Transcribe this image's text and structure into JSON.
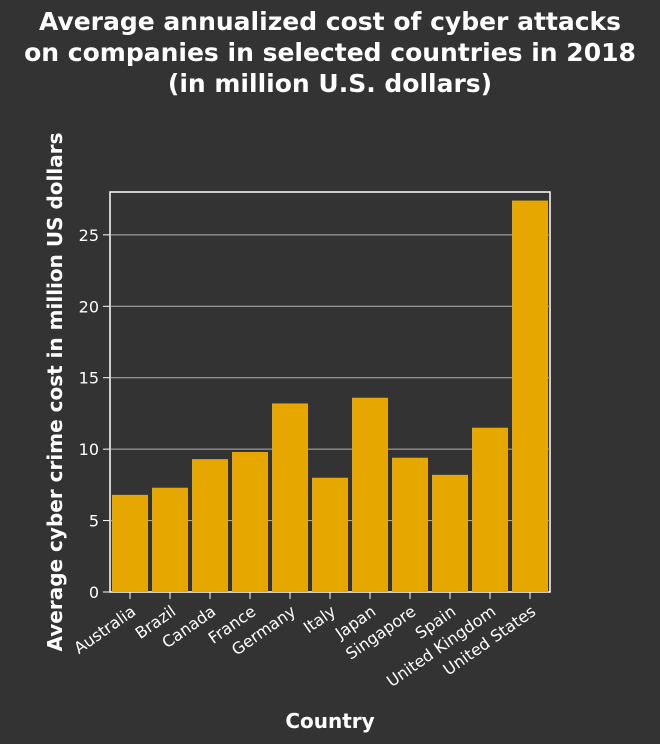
{
  "title_lines": [
    "Average annualized cost of cyber attacks",
    "on companies in selected countries in 2018",
    "(in million U.S. dollars)"
  ],
  "colors": {
    "background": "#333333",
    "bar": "#e6a800",
    "grid": "#b3b3b3",
    "text": "#ffffff"
  },
  "chart_data": {
    "type": "bar",
    "title": "Average annualized cost of cyber attacks on companies in selected countries in 2018 (in million U.S. dollars)",
    "xlabel": "Country",
    "ylabel": "Average cyber crime cost in million US dollars",
    "categories": [
      "Australia",
      "Brazil",
      "Canada",
      "France",
      "Germany",
      "Italy",
      "Japan",
      "Singapore",
      "Spain",
      "United Kingdom",
      "United States"
    ],
    "values": [
      6.8,
      7.3,
      9.3,
      9.8,
      13.2,
      8.0,
      13.6,
      9.4,
      8.2,
      11.5,
      27.4
    ],
    "yticks": [
      0,
      5,
      10,
      15,
      20,
      25
    ],
    "ylim": [
      0,
      28
    ],
    "grid": true,
    "legend": "none"
  }
}
